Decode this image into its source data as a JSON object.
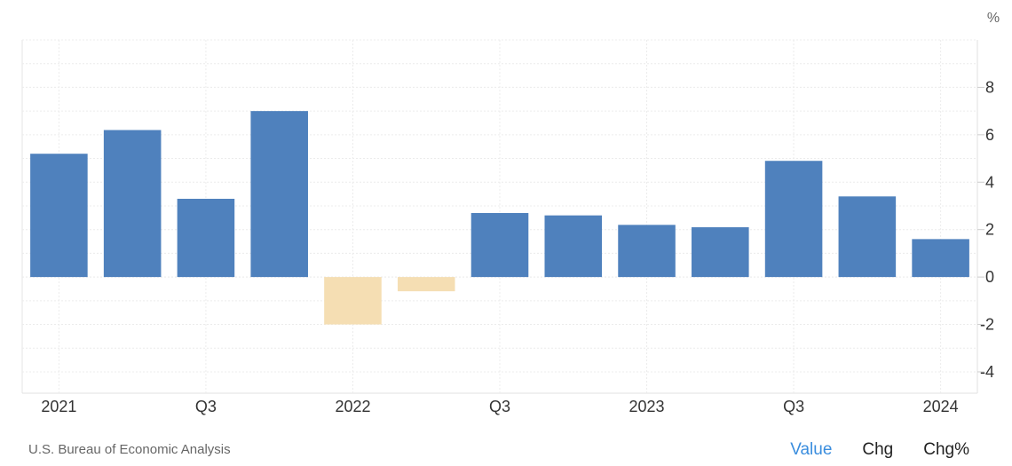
{
  "chart_data": {
    "type": "bar",
    "unit": "%",
    "x": [
      "2021 Q1",
      "2021 Q2",
      "2021 Q3",
      "2021 Q4",
      "2022 Q1",
      "2022 Q2",
      "2022 Q3",
      "2022 Q4",
      "2023 Q1",
      "2023 Q2",
      "2023 Q3",
      "2023 Q4",
      "2024 Q1"
    ],
    "values": [
      5.2,
      6.2,
      3.3,
      7.0,
      -2.0,
      -0.6,
      2.7,
      2.6,
      2.2,
      2.1,
      4.9,
      3.4,
      1.6
    ],
    "x_tick_labels": [
      {
        "index": 0,
        "label": "2021"
      },
      {
        "index": 2,
        "label": "Q3"
      },
      {
        "index": 4,
        "label": "2022"
      },
      {
        "index": 6,
        "label": "Q3"
      },
      {
        "index": 8,
        "label": "2023"
      },
      {
        "index": 10,
        "label": "Q3"
      },
      {
        "index": 12,
        "label": "2024"
      }
    ],
    "y_ticks": [
      8,
      6,
      4,
      2,
      0,
      -2,
      -4
    ],
    "ylim": [
      -4.9,
      10
    ],
    "grid": true,
    "colors": {
      "positive": "#4f81bd",
      "negative": "#f5deb3"
    }
  },
  "source": "U.S. Bureau of Economic Analysis",
  "views": [
    {
      "label": "Value",
      "active": true
    },
    {
      "label": "Chg",
      "active": false
    },
    {
      "label": "Chg%",
      "active": false
    }
  ]
}
